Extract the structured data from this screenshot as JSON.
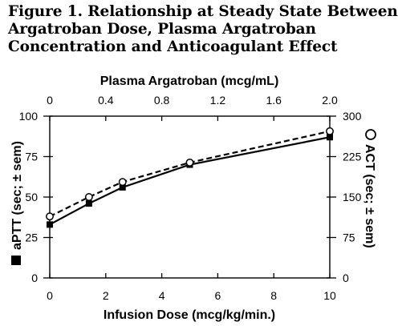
{
  "chart_data": {
    "type": "line",
    "title_lines": [
      "Figure 1. Relationship at Steady State Between",
      "Argatroban Dose, Plasma Argatroban",
      "Concentration and Anticoagulant Effect"
    ],
    "xlabel": "Infusion Dose (mcg/kg/min.)",
    "x_top_label": "Plasma Argatroban (mcg/mL)",
    "ylabel_left_text": "aPTT (sec; ± sem)",
    "ylabel_right_text": "ACT (sec; ± sem)",
    "xlim": [
      0,
      10
    ],
    "x_ticks": [
      "0",
      "2",
      "4",
      "6",
      "8",
      "10"
    ],
    "x_top_lim": [
      0,
      2.0
    ],
    "x_top_ticks": [
      "0",
      "0.4",
      "0.8",
      "1.2",
      "1.6",
      "2.0"
    ],
    "ylim_left": [
      0,
      100
    ],
    "y_left_ticks": [
      "0",
      "25",
      "50",
      "75",
      "100"
    ],
    "ylim_right": [
      0,
      300
    ],
    "y_right_ticks": [
      "0",
      "75",
      "150",
      "225",
      "300"
    ],
    "grid": false,
    "series": [
      {
        "name": "aPTT",
        "axis": "left",
        "marker": "filled-square",
        "line": "solid",
        "x": [
          0,
          1.4,
          2.6,
          5,
          10
        ],
        "values": [
          33,
          46,
          56,
          70,
          87
        ]
      },
      {
        "name": "ACT",
        "axis": "right",
        "marker": "open-circle",
        "line": "dashed",
        "x": [
          0,
          1.4,
          2.6,
          5,
          10
        ],
        "values": [
          114,
          150,
          178,
          214,
          272
        ]
      }
    ]
  }
}
